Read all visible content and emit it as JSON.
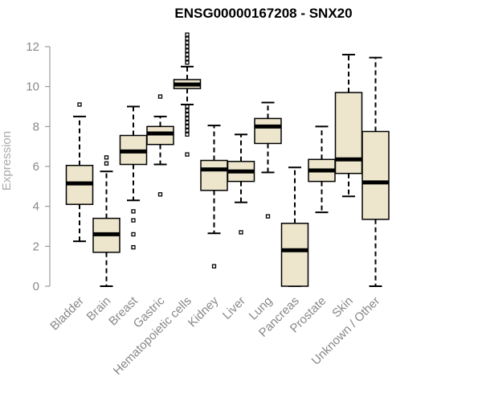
{
  "chart_data": {
    "type": "boxplot",
    "title": "ENSG00000167208 - SNX20",
    "xlabel": "",
    "ylabel": "Expression",
    "ylim": [
      0,
      12
    ],
    "yticks": [
      0,
      2,
      4,
      6,
      8,
      10,
      12
    ],
    "box_fill": "#ede6cd",
    "categories": [
      "Bladder",
      "Brain",
      "Breast",
      "Gastric",
      "Hematopoietic cells",
      "Kidney",
      "Liver",
      "Lung",
      "Pancreas",
      "Prostate",
      "Skin",
      "Unknown / Other"
    ],
    "boxes": [
      {
        "category": "Bladder",
        "whisker_low": 2.25,
        "q1": 4.1,
        "median": 5.15,
        "q3": 6.05,
        "whisker_high": 8.5,
        "outliers": [
          9.1
        ]
      },
      {
        "category": "Brain",
        "whisker_low": 0.0,
        "q1": 1.7,
        "median": 2.6,
        "q3": 3.4,
        "whisker_high": 5.75,
        "outliers": [
          6.15,
          6.45
        ]
      },
      {
        "category": "Breast",
        "whisker_low": 4.3,
        "q1": 6.1,
        "median": 6.75,
        "q3": 7.55,
        "whisker_high": 9.0,
        "outliers": [
          3.75,
          3.3,
          2.6,
          1.95
        ]
      },
      {
        "category": "Gastric",
        "whisker_low": 6.1,
        "q1": 7.1,
        "median": 7.65,
        "q3": 8.0,
        "whisker_high": 8.5,
        "outliers": [
          9.5,
          4.6
        ]
      },
      {
        "category": "Hematopoietic cells",
        "whisker_low": 9.1,
        "q1": 9.9,
        "median": 10.1,
        "q3": 10.35,
        "whisker_high": 11.0,
        "outliers": [
          11.2,
          11.4,
          11.6,
          11.8,
          12.0,
          12.2,
          12.4,
          12.6,
          9.0,
          8.8,
          8.6,
          8.4,
          8.2,
          8.0,
          7.8,
          7.6,
          6.6
        ]
      },
      {
        "category": "Kidney",
        "whisker_low": 2.65,
        "q1": 4.8,
        "median": 5.85,
        "q3": 6.3,
        "whisker_high": 8.05,
        "outliers": [
          1.0
        ]
      },
      {
        "category": "Liver",
        "whisker_low": 4.2,
        "q1": 5.25,
        "median": 5.75,
        "q3": 6.25,
        "whisker_high": 7.6,
        "outliers": [
          2.7
        ]
      },
      {
        "category": "Lung",
        "whisker_low": 5.7,
        "q1": 7.15,
        "median": 8.0,
        "q3": 8.4,
        "whisker_high": 9.2,
        "outliers": [
          3.5
        ]
      },
      {
        "category": "Pancreas",
        "whisker_low": 0.0,
        "q1": 0.0,
        "median": 1.8,
        "q3": 3.15,
        "whisker_high": 5.95,
        "outliers": []
      },
      {
        "category": "Prostate",
        "whisker_low": 3.7,
        "q1": 5.25,
        "median": 5.8,
        "q3": 6.35,
        "whisker_high": 8.0,
        "outliers": []
      },
      {
        "category": "Skin",
        "whisker_low": 4.5,
        "q1": 5.65,
        "median": 6.35,
        "q3": 9.7,
        "whisker_high": 11.6,
        "outliers": []
      },
      {
        "category": "Unknown / Other",
        "whisker_low": 0.0,
        "q1": 3.35,
        "median": 5.2,
        "q3": 7.75,
        "whisker_high": 11.45,
        "outliers": []
      }
    ]
  }
}
